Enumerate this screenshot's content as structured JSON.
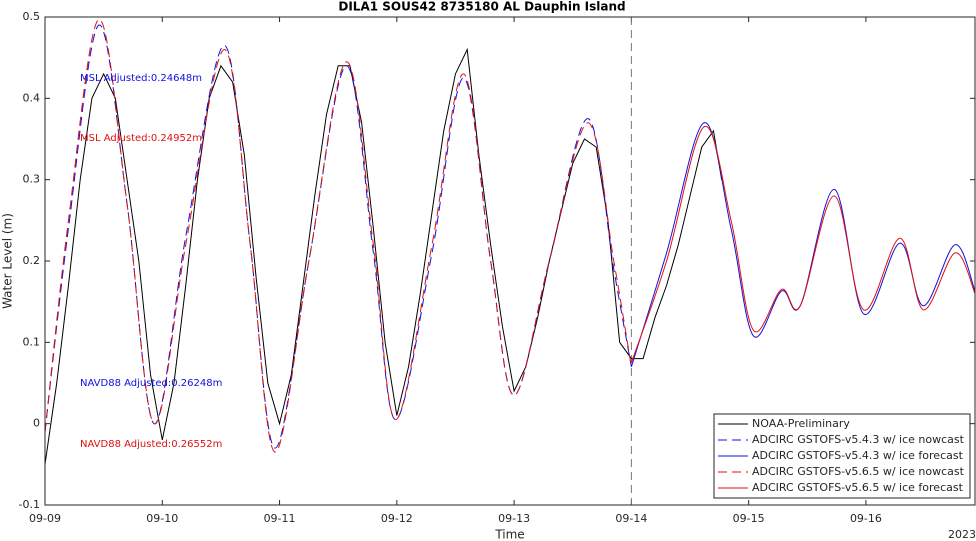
{
  "chart_data": {
    "type": "line",
    "title": "DILA1 SOUS42 8735180 AL Dauphin Island",
    "x_label": "Time",
    "y_label": "Water Level (m)",
    "year_label": "2023",
    "xlim": [
      0,
      7.93
    ],
    "ylim": [
      -0.1,
      0.5
    ],
    "xticks": [
      {
        "value": 0,
        "label": "09-09"
      },
      {
        "value": 1,
        "label": "09-10"
      },
      {
        "value": 2,
        "label": "09-11"
      },
      {
        "value": 3,
        "label": "09-12"
      },
      {
        "value": 4,
        "label": "09-13"
      },
      {
        "value": 5,
        "label": "09-14"
      },
      {
        "value": 6,
        "label": "09-15"
      },
      {
        "value": 7,
        "label": "09-16"
      }
    ],
    "yticks": [
      -0.1,
      0,
      0.1,
      0.2,
      0.3,
      0.4,
      0.5
    ],
    "vline_x": 5,
    "grid": false,
    "legend_corner": "bottom-right",
    "annotations": [
      {
        "text": "MSL Adjusted:0.24648m",
        "color": "#1010e0"
      },
      {
        "text": "MSL Adjusted:0.24952m",
        "color": "#e01010"
      },
      {
        "text": "NAVD88 Adjusted:0.26248m",
        "color": "#1010e0"
      },
      {
        "text": "NAVD88 Adjusted:0.26552m",
        "color": "#e01010"
      }
    ],
    "series": [
      {
        "name": "NOAA-Preliminary",
        "color": "#000000",
        "dash": false,
        "smooth": false,
        "x": [
          0,
          0.1,
          0.2,
          0.3,
          0.4,
          0.5,
          0.6,
          0.7,
          0.8,
          0.9,
          1.0,
          1.1,
          1.2,
          1.3,
          1.4,
          1.5,
          1.6,
          1.7,
          1.8,
          1.9,
          2.0,
          2.1,
          2.2,
          2.3,
          2.4,
          2.5,
          2.6,
          2.7,
          2.8,
          2.9,
          3.0,
          3.1,
          3.2,
          3.3,
          3.4,
          3.5,
          3.6,
          3.7,
          3.8,
          3.9,
          4.0,
          4.1,
          4.2,
          4.3,
          4.4,
          4.5,
          4.6,
          4.7,
          4.8,
          4.9,
          5.0,
          5.1,
          5.2,
          5.3,
          5.4,
          5.5,
          5.6,
          5.7,
          5.77
        ],
        "values": [
          -0.05,
          0.05,
          0.17,
          0.3,
          0.4,
          0.43,
          0.4,
          0.3,
          0.2,
          0.06,
          -0.02,
          0.05,
          0.17,
          0.3,
          0.4,
          0.44,
          0.42,
          0.33,
          0.18,
          0.05,
          0.0,
          0.06,
          0.17,
          0.28,
          0.38,
          0.44,
          0.44,
          0.37,
          0.24,
          0.1,
          0.01,
          0.07,
          0.16,
          0.26,
          0.36,
          0.43,
          0.46,
          0.33,
          0.22,
          0.12,
          0.04,
          0.07,
          0.13,
          0.2,
          0.26,
          0.32,
          0.35,
          0.34,
          0.25,
          0.1,
          0.08,
          0.08,
          0.13,
          0.17,
          0.22,
          0.28,
          0.34,
          0.36,
          0.3
        ]
      },
      {
        "name": "ADCIRC GSTOFS-v5.4.3 w/ ice nowcast",
        "color": "#1010e0",
        "dash": true,
        "smooth": true,
        "x": [
          0,
          0.2,
          0.46,
          0.7,
          0.93,
          1.2,
          1.53,
          1.75,
          1.96,
          2.25,
          2.57,
          2.8,
          2.99,
          3.3,
          3.57,
          3.8,
          4.0,
          4.3,
          4.63,
          4.85,
          5.0
        ],
        "values": [
          -0.01,
          0.24,
          0.49,
          0.27,
          0.0,
          0.23,
          0.465,
          0.22,
          -0.03,
          0.2,
          0.44,
          0.21,
          0.005,
          0.21,
          0.425,
          0.2,
          0.035,
          0.2,
          0.375,
          0.19,
          0.07
        ]
      },
      {
        "name": "ADCIRC GSTOFS-v5.4.3 w/ ice forecast",
        "color": "#1010e0",
        "dash": false,
        "smooth": true,
        "x": [
          5.0,
          5.3,
          5.62,
          5.85,
          6.04,
          6.28,
          6.44,
          6.73,
          6.98,
          7.29,
          7.49,
          7.76,
          7.93
        ],
        "values": [
          0.07,
          0.21,
          0.37,
          0.24,
          0.108,
          0.163,
          0.145,
          0.288,
          0.135,
          0.222,
          0.145,
          0.22,
          0.163
        ]
      },
      {
        "name": "ADCIRC GSTOFS-v5.6.5 w/ ice nowcast",
        "color": "#e01010",
        "dash": true,
        "smooth": true,
        "x": [
          0,
          0.2,
          0.46,
          0.7,
          0.93,
          1.2,
          1.53,
          1.75,
          1.96,
          2.25,
          2.57,
          2.8,
          2.99,
          3.3,
          3.57,
          3.8,
          4.0,
          4.3,
          4.63,
          4.85,
          5.0
        ],
        "values": [
          -0.01,
          0.25,
          0.497,
          0.27,
          0.0,
          0.22,
          0.46,
          0.22,
          -0.035,
          0.2,
          0.445,
          0.22,
          0.005,
          0.22,
          0.43,
          0.2,
          0.035,
          0.2,
          0.37,
          0.2,
          0.07
        ]
      },
      {
        "name": "ADCIRC GSTOFS-v5.6.5 w/ ice forecast",
        "color": "#e01010",
        "dash": false,
        "smooth": true,
        "x": [
          5.0,
          5.3,
          5.62,
          5.85,
          6.04,
          6.28,
          6.44,
          6.73,
          6.98,
          7.29,
          7.49,
          7.76,
          7.93
        ],
        "values": [
          0.075,
          0.2,
          0.365,
          0.25,
          0.115,
          0.165,
          0.145,
          0.28,
          0.14,
          0.228,
          0.14,
          0.21,
          0.16
        ]
      }
    ]
  }
}
